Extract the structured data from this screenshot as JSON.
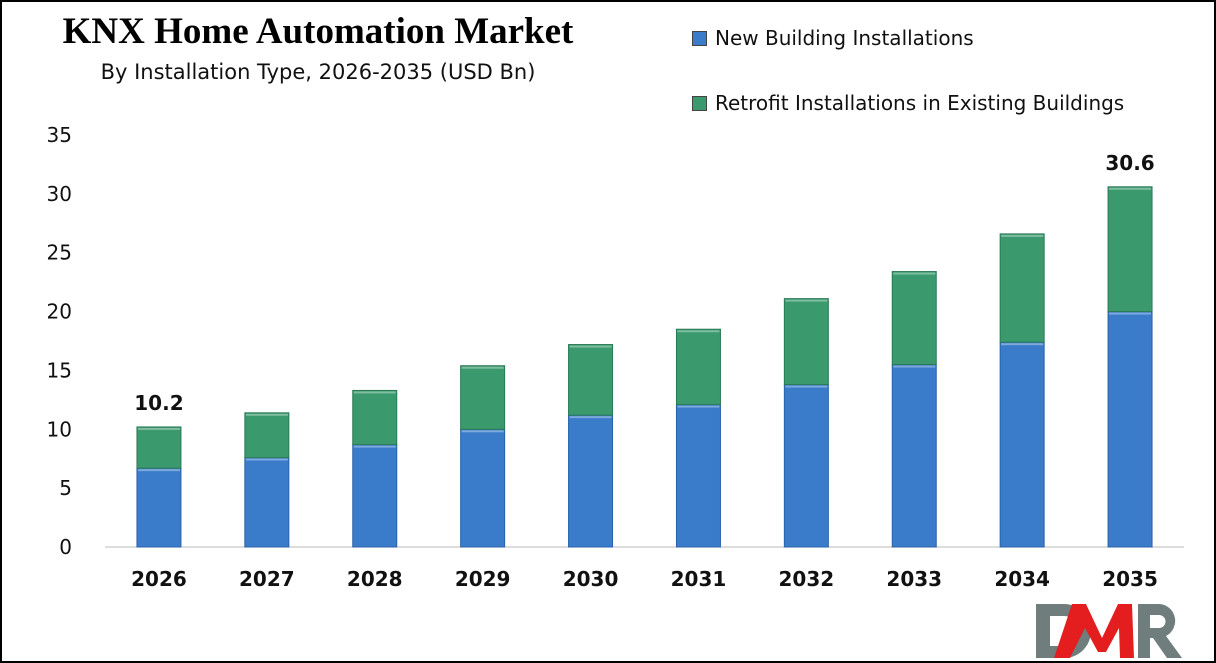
{
  "chart_data": {
    "type": "bar",
    "stacked": true,
    "title": "KNX Home Automation Market",
    "subtitle": "By Installation Type, 2026-2035 (USD Bn)",
    "categories": [
      "2026",
      "2027",
      "2028",
      "2029",
      "2030",
      "2031",
      "2032",
      "2033",
      "2034",
      "2035"
    ],
    "series": [
      {
        "name": "New Building Installations",
        "color": "#3a7cc9",
        "values": [
          6.7,
          7.6,
          8.7,
          10.0,
          11.2,
          12.1,
          13.8,
          15.5,
          17.4,
          20.0
        ]
      },
      {
        "name": "Retrofit Installations in Existing Buildings",
        "color": "#3a9a6e",
        "values": [
          3.5,
          3.8,
          4.6,
          5.4,
          6.0,
          6.4,
          7.3,
          7.9,
          9.2,
          10.6
        ]
      }
    ],
    "data_labels": [
      {
        "category": "2026",
        "text": "10.2"
      },
      {
        "category": "2035",
        "text": "30.6"
      }
    ],
    "ylim": [
      0,
      35
    ],
    "yticks": [
      "0",
      "5",
      "10",
      "15",
      "20",
      "25",
      "30",
      "35"
    ],
    "grid": false,
    "legend_position": "top-right"
  },
  "logo": {
    "text": "DMR"
  }
}
